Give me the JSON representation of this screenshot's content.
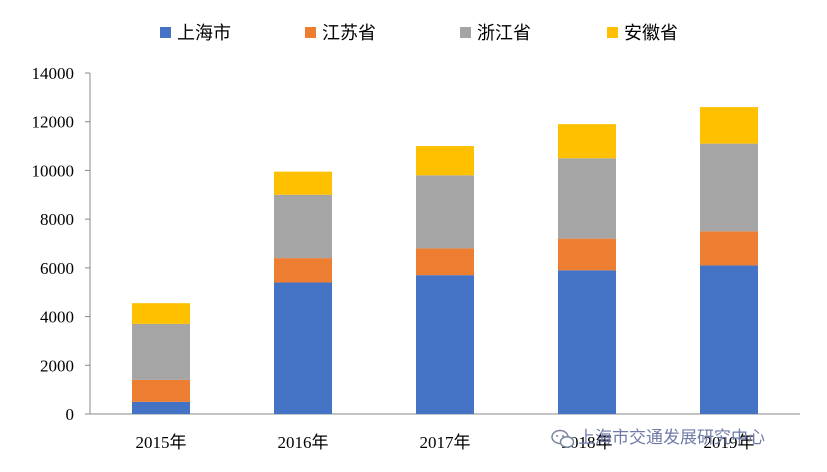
{
  "chart_data": {
    "type": "bar",
    "stacked": true,
    "categories": [
      "2015年",
      "2016年",
      "2017年",
      "2018年",
      "2019年"
    ],
    "series": [
      {
        "name": "上海市",
        "color": "#4472c4",
        "values": [
          500,
          5400,
          5700,
          5900,
          6100
        ]
      },
      {
        "name": "江苏省",
        "color": "#ed7d31",
        "values": [
          900,
          1000,
          1100,
          1300,
          1400
        ]
      },
      {
        "name": "浙江省",
        "color": "#a5a5a5",
        "values": [
          2300,
          2600,
          3000,
          3300,
          3600
        ]
      },
      {
        "name": "安徽省",
        "color": "#ffc000",
        "values": [
          850,
          950,
          1200,
          1400,
          1500
        ]
      }
    ],
    "ylim": [
      0,
      14000
    ],
    "yticks": [
      0,
      2000,
      4000,
      6000,
      8000,
      10000,
      12000,
      14000
    ],
    "legend_position": "top",
    "grid": false
  },
  "watermark": {
    "text": "上海市交通发展研究中心",
    "icon": "wechat-icon"
  }
}
